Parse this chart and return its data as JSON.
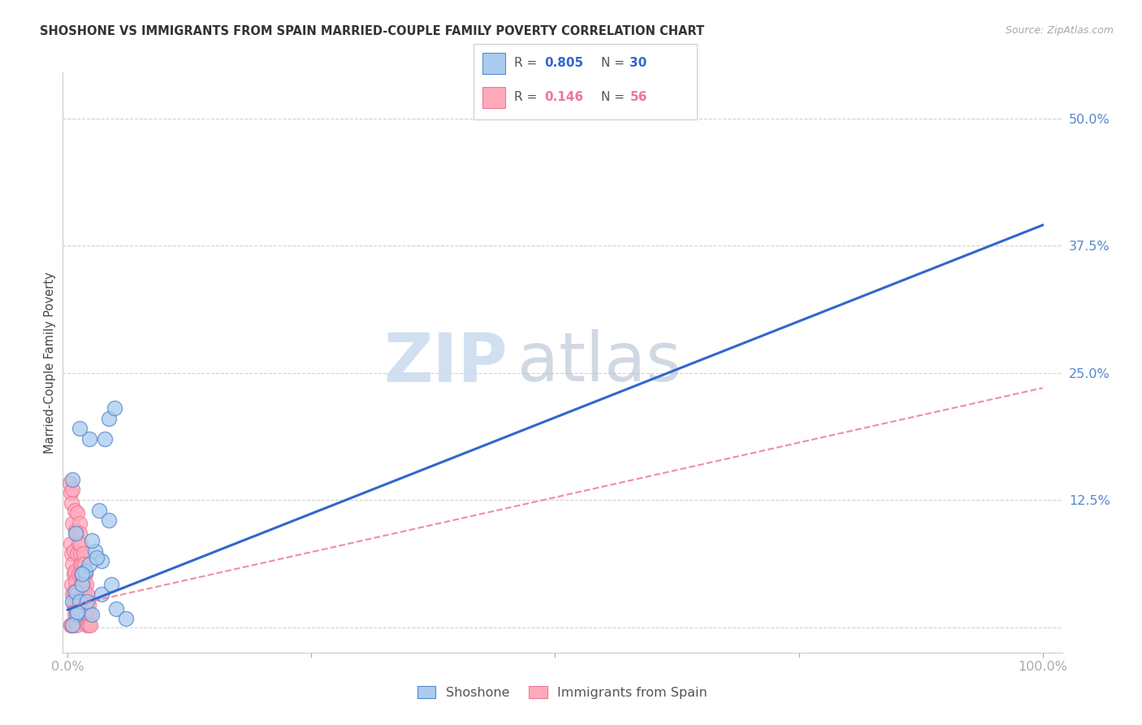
{
  "title": "SHOSHONE VS IMMIGRANTS FROM SPAIN MARRIED-COUPLE FAMILY POVERTY CORRELATION CHART",
  "source": "Source: ZipAtlas.com",
  "ylabel": "Married-Couple Family Poverty",
  "xlim": [
    -0.005,
    1.02
  ],
  "ylim": [
    -0.025,
    0.545
  ],
  "xticks": [
    0.0,
    0.25,
    0.5,
    0.75,
    1.0
  ],
  "xticklabels": [
    "0.0%",
    "",
    "",
    "",
    "100.0%"
  ],
  "yticks": [
    0.0,
    0.125,
    0.25,
    0.375,
    0.5
  ],
  "yticklabels": [
    "",
    "12.5%",
    "25.0%",
    "37.5%",
    "50.0%"
  ],
  "shoshone_fill": "#AACCEE",
  "shoshone_edge": "#5588CC",
  "spain_fill": "#FFAABB",
  "spain_edge": "#EE7799",
  "shoshone_line_color": "#3366CC",
  "spain_line_color": "#EE7799",
  "R_shoshone": "0.805",
  "N_shoshone": "30",
  "R_spain": "0.146",
  "N_spain": "56",
  "tick_color": "#5588CC",
  "watermark_zip": "ZIP",
  "watermark_atlas": "atlas",
  "shoshone_line_x": [
    0.0,
    1.0
  ],
  "shoshone_line_y": [
    0.017,
    0.395
  ],
  "spain_line_x": [
    0.0,
    1.0
  ],
  "spain_line_y": [
    0.02,
    0.235
  ],
  "shoshone_x": [
    0.022,
    0.038,
    0.042,
    0.012,
    0.005,
    0.008,
    0.018,
    0.028,
    0.005,
    0.018,
    0.035,
    0.048,
    0.009,
    0.015,
    0.025,
    0.032,
    0.042,
    0.012,
    0.022,
    0.008,
    0.015,
    0.005,
    0.025,
    0.035,
    0.045,
    0.01,
    0.02,
    0.03,
    0.05,
    0.06
  ],
  "shoshone_y": [
    0.185,
    0.185,
    0.205,
    0.195,
    0.025,
    0.035,
    0.055,
    0.075,
    0.145,
    0.055,
    0.065,
    0.215,
    0.012,
    0.042,
    0.085,
    0.115,
    0.105,
    0.025,
    0.062,
    0.092,
    0.052,
    0.002,
    0.012,
    0.032,
    0.042,
    0.015,
    0.025,
    0.068,
    0.018,
    0.008
  ],
  "spain_x": [
    0.002,
    0.003,
    0.004,
    0.005,
    0.003,
    0.004,
    0.005,
    0.006,
    0.004,
    0.005,
    0.006,
    0.007,
    0.003,
    0.004,
    0.005,
    0.003,
    0.005,
    0.007,
    0.008,
    0.006,
    0.007,
    0.008,
    0.006,
    0.007,
    0.009,
    0.008,
    0.009,
    0.01,
    0.009,
    0.01,
    0.011,
    0.01,
    0.012,
    0.011,
    0.013,
    0.012,
    0.013,
    0.014,
    0.013,
    0.015,
    0.014,
    0.016,
    0.015,
    0.017,
    0.016,
    0.018,
    0.017,
    0.019,
    0.018,
    0.02,
    0.019,
    0.021,
    0.02,
    0.022,
    0.021,
    0.023
  ],
  "spain_y": [
    0.142,
    0.132,
    0.122,
    0.102,
    0.082,
    0.072,
    0.062,
    0.052,
    0.042,
    0.032,
    0.022,
    0.012,
    0.002,
    0.002,
    0.002,
    0.002,
    0.135,
    0.115,
    0.095,
    0.075,
    0.055,
    0.045,
    0.035,
    0.025,
    0.015,
    0.005,
    0.002,
    0.112,
    0.092,
    0.072,
    0.052,
    0.032,
    0.102,
    0.082,
    0.062,
    0.092,
    0.072,
    0.052,
    0.082,
    0.062,
    0.042,
    0.072,
    0.052,
    0.062,
    0.042,
    0.052,
    0.032,
    0.042,
    0.022,
    0.032,
    0.012,
    0.022,
    0.002,
    0.012,
    0.002,
    0.002
  ]
}
